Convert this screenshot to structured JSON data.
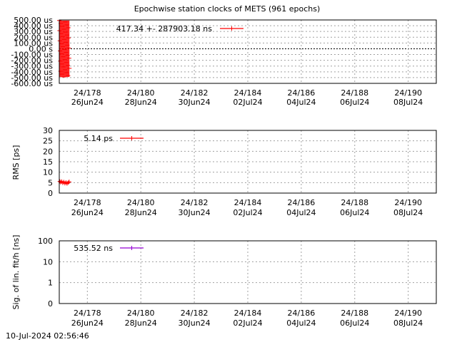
{
  "title": "Epochwise station clocks of METS (961 epochs)",
  "timestamp": "10-Jul-2024 02:56:46",
  "x_ticks": [
    {
      "doy": 178,
      "top": "24/178",
      "bottom": "26Jun24"
    },
    {
      "doy": 180,
      "top": "24/180",
      "bottom": "28Jun24"
    },
    {
      "doy": 182,
      "top": "24/182",
      "bottom": "30Jun24"
    },
    {
      "doy": 184,
      "top": "24/184",
      "bottom": "02Jul24"
    },
    {
      "doy": 186,
      "top": "24/186",
      "bottom": "04Jul24"
    },
    {
      "doy": 188,
      "top": "24/188",
      "bottom": "06Jul24"
    },
    {
      "doy": 190,
      "top": "24/190",
      "bottom": "08Jul24"
    }
  ],
  "x_range_doy": [
    176.95,
    191.05
  ],
  "chart_data": [
    {
      "type": "line",
      "title": "Epochwise station clocks of METS (961 epochs)",
      "ylabel": "",
      "ylim": [
        -600,
        500
      ],
      "yticks": [
        500,
        400,
        300,
        200,
        100,
        0,
        -100,
        -200,
        -300,
        -400,
        -500,
        -600
      ],
      "ytick_labels": [
        "500.00 us",
        "400.00 us",
        "300.00 us",
        "200.00 us",
        "100.00 us",
        "0.00  s",
        "-100.00 us",
        "-200.00 us",
        "-300.00 us",
        "-400.00 us",
        "-500.00 us",
        "-600.00 us"
      ],
      "zero_line": true,
      "legend": "417.34 +-   287903.18 ns",
      "color": "#ff0000",
      "x_range_doy": [
        176.95,
        177.33
      ],
      "y_band": [
        -490,
        490
      ]
    },
    {
      "type": "line",
      "title": "",
      "ylabel": "RMS [ps]",
      "ylim": [
        0,
        30
      ],
      "yticks": [
        0,
        5,
        10,
        15,
        20,
        25,
        30
      ],
      "ytick_labels": [
        "0",
        "5",
        "10",
        "15",
        "20",
        "25",
        "30"
      ],
      "legend": "5.14 ps",
      "color": "#ff0000",
      "x": [
        176.97,
        177.0,
        177.04,
        177.08,
        177.12,
        177.16,
        177.2,
        177.24,
        177.28,
        177.32
      ],
      "y": [
        5.6,
        5.2,
        5.5,
        4.9,
        5.3,
        4.7,
        5.1,
        4.6,
        5.0,
        5.4
      ]
    },
    {
      "type": "line",
      "title": "",
      "ylabel": "Sig. of lin. fit/h [ns]",
      "yscale": "log",
      "yticks": [
        1,
        10,
        100,
        1000
      ],
      "ytick_labels": [
        "0",
        "1",
        "10",
        "100"
      ],
      "legend": "535.52 ns",
      "color": "#9400d3"
    }
  ]
}
